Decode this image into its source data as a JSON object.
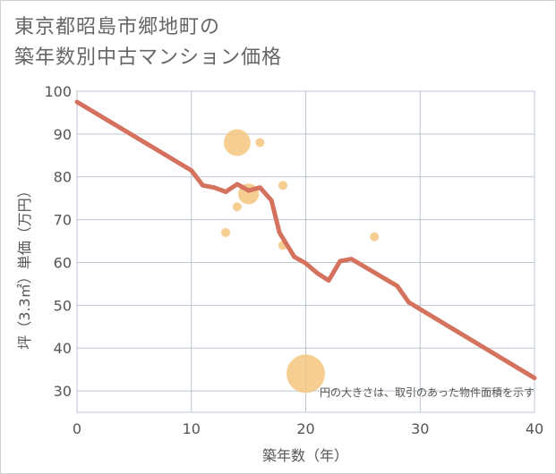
{
  "title_lines": [
    "東京都昭島市郷地町の",
    "築年数別中古マンション価格"
  ],
  "chart_data": {
    "type": "scatter+line",
    "xlabel": "築年数（年）",
    "ylabel": "坪（3.3㎡）単価（万円）",
    "xlim": [
      0,
      40
    ],
    "ylim": [
      25,
      100
    ],
    "xticks": [
      0,
      10,
      20,
      30,
      40
    ],
    "yticks": [
      30,
      40,
      50,
      60,
      70,
      80,
      90,
      100
    ],
    "grid": true,
    "note": "円の大きさは、取引のあった物件面積を示す",
    "scatter": [
      {
        "x": 13,
        "y": 67,
        "size": 1
      },
      {
        "x": 14,
        "y": 88,
        "size": 4
      },
      {
        "x": 14,
        "y": 73,
        "size": 1
      },
      {
        "x": 15,
        "y": 76,
        "size": 3
      },
      {
        "x": 16,
        "y": 88,
        "size": 1
      },
      {
        "x": 18,
        "y": 78,
        "size": 1
      },
      {
        "x": 18,
        "y": 64,
        "size": 1
      },
      {
        "x": 20,
        "y": 34,
        "size": 6
      },
      {
        "x": 26,
        "y": 66,
        "size": 1
      }
    ],
    "line": [
      {
        "x": 0,
        "y": 97.5
      },
      {
        "x": 10,
        "y": 81.5
      },
      {
        "x": 11,
        "y": 78
      },
      {
        "x": 12,
        "y": 77.5
      },
      {
        "x": 13,
        "y": 76.5
      },
      {
        "x": 14,
        "y": 78.3
      },
      {
        "x": 15,
        "y": 76.8
      },
      {
        "x": 16,
        "y": 77.5
      },
      {
        "x": 17,
        "y": 74.5
      },
      {
        "x": 17.7,
        "y": 67
      },
      {
        "x": 19,
        "y": 61.3
      },
      {
        "x": 20,
        "y": 59.8
      },
      {
        "x": 21,
        "y": 57.5
      },
      {
        "x": 22,
        "y": 55.8
      },
      {
        "x": 23,
        "y": 60.3
      },
      {
        "x": 24,
        "y": 60.8
      },
      {
        "x": 28,
        "y": 54.5
      },
      {
        "x": 29,
        "y": 50.7
      },
      {
        "x": 40,
        "y": 33
      }
    ],
    "colors": {
      "line": "#d4725e",
      "bubble": "#f5c57f",
      "grid": "#bcc6d4"
    }
  }
}
